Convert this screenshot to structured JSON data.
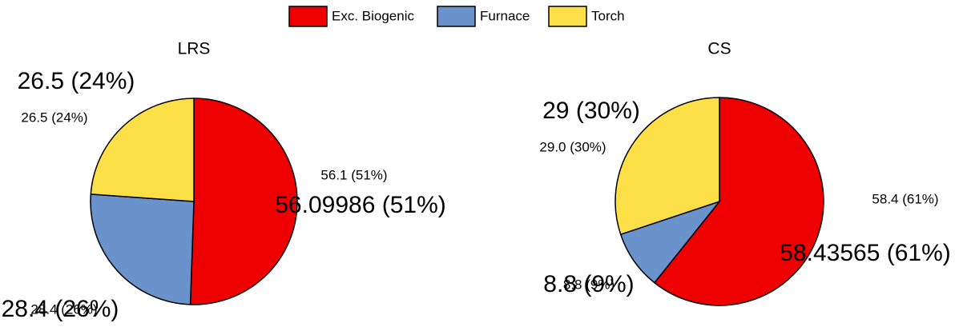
{
  "chart_data": [
    {
      "type": "pie",
      "title": "LRS",
      "categories": [
        "Exc. Biogenic",
        "Furnace",
        "Torch"
      ],
      "colors": [
        "#ee0000",
        "#6a93cc",
        "#fde047"
      ],
      "values": [
        56.09986,
        28.4,
        26.5
      ],
      "value_labels": [
        "56.1 (51%)",
        "28.4 (26%)",
        "26.5 (24%)"
      ],
      "value_labels_large": [
        "56.09986 (51%)",
        "28.4 (26%)",
        "26.5 (24%)"
      ]
    },
    {
      "type": "pie",
      "title": "CS",
      "categories": [
        "Exc. Biogenic",
        "Furnace",
        "Torch"
      ],
      "colors": [
        "#ee0000",
        "#6a93cc",
        "#fde047"
      ],
      "values": [
        58.43565,
        8.8,
        29
      ],
      "value_labels": [
        "58.4 (61%)",
        "8.8 (9%)",
        "29.0 (30%)"
      ],
      "value_labels_large": [
        "58.43565 (61%)",
        "8.8 (9%)",
        "29 (30%)"
      ]
    }
  ]
}
